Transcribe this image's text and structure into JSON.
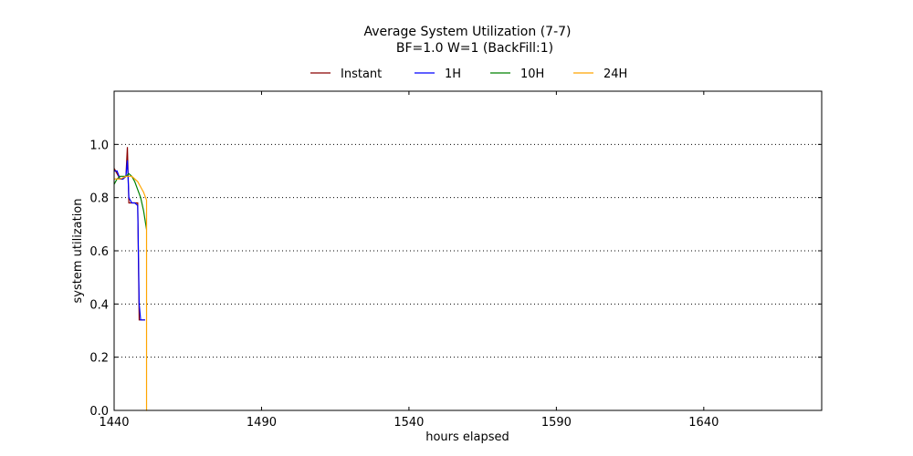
{
  "chart_data": {
    "type": "line",
    "title": "Average System Utilization (7-7)",
    "subtitle": "BF=1.0   W=1   (BackFill:1)",
    "xlabel": "hours elapsed",
    "ylabel": "system utilization",
    "xlim": [
      1440,
      1680
    ],
    "ylim": [
      0,
      1.2
    ],
    "xticks": [
      1440,
      1490,
      1540,
      1590,
      1640
    ],
    "yticks": [
      0.0,
      0.2,
      0.4,
      0.6,
      0.8,
      1.0
    ],
    "ytick_labels": [
      "0.0",
      "0.2",
      "0.4",
      "0.6",
      "0.8",
      "1.0"
    ],
    "grid": "horizontal dotted",
    "legend_position": "top",
    "series": [
      {
        "name": "Instant",
        "color": "#8b0000",
        "x": [
          1440,
          1441,
          1442,
          1443,
          1444,
          1444.5,
          1445,
          1446,
          1447,
          1448,
          1448.5,
          1449,
          1450,
          1450.5
        ],
        "y": [
          0.91,
          0.89,
          0.87,
          0.87,
          0.88,
          0.99,
          0.78,
          0.78,
          0.78,
          0.78,
          0.34,
          0.34,
          0.34,
          0.34
        ]
      },
      {
        "name": "1H",
        "color": "#0000ff",
        "x": [
          1440,
          1441,
          1442,
          1443,
          1444,
          1444.5,
          1445,
          1446,
          1447,
          1448,
          1448.5,
          1449,
          1450,
          1450.5
        ],
        "y": [
          0.9,
          0.9,
          0.87,
          0.87,
          0.88,
          0.94,
          0.8,
          0.78,
          0.78,
          0.77,
          0.4,
          0.34,
          0.34,
          0.34
        ]
      },
      {
        "name": "10H",
        "color": "#008000",
        "x": [
          1440,
          1441,
          1442,
          1443,
          1444,
          1445,
          1446,
          1447,
          1448,
          1449,
          1450,
          1451
        ],
        "y": [
          0.85,
          0.87,
          0.88,
          0.88,
          0.88,
          0.89,
          0.88,
          0.86,
          0.83,
          0.8,
          0.75,
          0.68
        ]
      },
      {
        "name": "24H",
        "color": "#ffa500",
        "x": [
          1440,
          1442,
          1444,
          1445,
          1446,
          1447,
          1448,
          1449,
          1450,
          1451,
          1451,
          1451.2
        ],
        "y": [
          0.87,
          0.87,
          0.88,
          0.88,
          0.88,
          0.87,
          0.86,
          0.84,
          0.82,
          0.79,
          0.0,
          0.0
        ]
      }
    ]
  }
}
